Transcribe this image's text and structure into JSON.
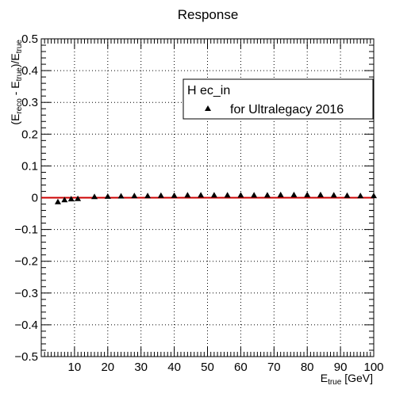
{
  "chart_data": {
    "type": "scatter",
    "title": "Response",
    "xlabel": {
      "main": "E",
      "sub": "true",
      "suffix": " [GeV]"
    },
    "ylabel": {
      "parts": [
        "(E",
        "reco",
        " - E",
        "true",
        ")/E",
        "true"
      ]
    },
    "xlim": [
      0,
      100
    ],
    "ylim": [
      -0.5,
      0.5
    ],
    "x_ticks": [
      10,
      20,
      30,
      40,
      50,
      60,
      70,
      80,
      90,
      100
    ],
    "y_ticks": [
      -0.5,
      -0.4,
      -0.3,
      -0.2,
      -0.1,
      0,
      0.1,
      0.2,
      0.3,
      0.4,
      0.5
    ],
    "y_tick_labels": [
      "−0.5",
      "−0.4",
      "−0.3",
      "−0.2",
      "−0.1",
      "0",
      "0.1",
      "0.2",
      "0.3",
      "0.4",
      "0.5"
    ],
    "grid": true,
    "reference_line": {
      "y": 0,
      "color": "#cc0000"
    },
    "legend": {
      "header": "H ec_in",
      "entries": [
        "for Ultralegacy 2016"
      ],
      "placement": "top-right"
    },
    "series": [
      {
        "name": "for Ultralegacy 2016",
        "marker": "triangle-up",
        "color": "#000000",
        "x": [
          5,
          7,
          9,
          11,
          16,
          20,
          24,
          28,
          32,
          36,
          40,
          44,
          48,
          52,
          56,
          60,
          64,
          68,
          72,
          76,
          80,
          84,
          88,
          92,
          96,
          100
        ],
        "y": [
          -0.013,
          -0.007,
          -0.004,
          -0.003,
          0.003,
          0.004,
          0.005,
          0.006,
          0.006,
          0.007,
          0.007,
          0.008,
          0.008,
          0.008,
          0.008,
          0.008,
          0.008,
          0.008,
          0.009,
          0.009,
          0.009,
          0.009,
          0.008,
          0.007,
          0.006,
          0.006
        ]
      }
    ]
  }
}
